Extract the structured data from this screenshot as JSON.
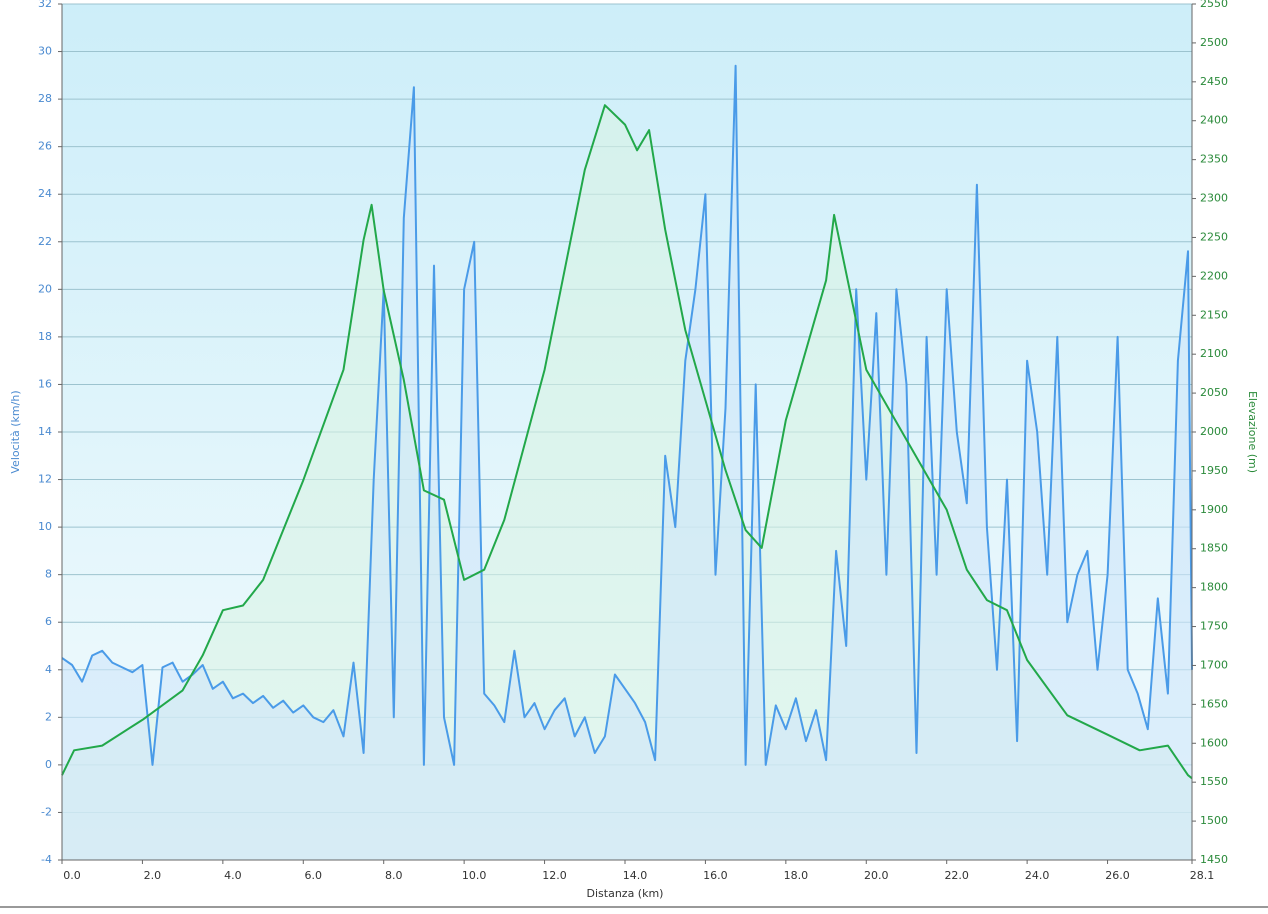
{
  "chart_data": {
    "type": "line",
    "x_label": "Distanza  (km)",
    "y_label": "Velocità (km/h)",
    "y2_label": "Elevazione (m)",
    "xlim": [
      0,
      28.1
    ],
    "ylim": [
      -4,
      32
    ],
    "y2lim": [
      1450,
      2550
    ],
    "xticks": [
      {
        "value": 0,
        "label": "0.0"
      },
      {
        "value": 2,
        "label": "2.0"
      },
      {
        "value": 4,
        "label": "4.0"
      },
      {
        "value": 6,
        "label": "6.0"
      },
      {
        "value": 8,
        "label": "8.0"
      },
      {
        "value": 10,
        "label": "10.0"
      },
      {
        "value": 12,
        "label": "12.0"
      },
      {
        "value": 14,
        "label": "14.0"
      },
      {
        "value": 16,
        "label": "16.0"
      },
      {
        "value": 18,
        "label": "18.0"
      },
      {
        "value": 20,
        "label": "20.0"
      },
      {
        "value": 22,
        "label": "22.0"
      },
      {
        "value": 24,
        "label": "24.0"
      },
      {
        "value": 26,
        "label": "26.0"
      },
      28.1
    ],
    "yticks": [
      -4,
      -2,
      0,
      2,
      4,
      6,
      8,
      10,
      12,
      14,
      16,
      18,
      20,
      22,
      24,
      26,
      28,
      30,
      32
    ],
    "y2ticks": [
      1450,
      1500,
      1550,
      1600,
      1650,
      1700,
      1750,
      1800,
      1850,
      1900,
      1950,
      2000,
      2050,
      2100,
      2150,
      2200,
      2250,
      2300,
      2350,
      2400,
      2450,
      2500,
      2550
    ],
    "grid": true,
    "series": [
      {
        "color": "#4a9be8",
        "fill": "#cfe6fa",
        "axis": "y",
        "x": [
          0,
          0.25,
          0.5,
          0.75,
          1,
          1.25,
          1.5,
          1.75,
          2,
          2.25,
          2.5,
          2.75,
          3,
          3.25,
          3.5,
          3.75,
          4,
          4.25,
          4.5,
          4.75,
          5,
          5.25,
          5.5,
          5.75,
          6,
          6.25,
          6.5,
          6.75,
          7,
          7.25,
          7.5,
          7.75,
          8,
          8.25,
          8.5,
          8.75,
          9,
          9.25,
          9.5,
          9.75,
          10,
          10.25,
          10.5,
          10.75,
          11,
          11.25,
          11.5,
          11.75,
          12,
          12.25,
          12.5,
          12.75,
          13,
          13.25,
          13.5,
          13.75,
          14,
          14.25,
          14.5,
          14.75,
          15,
          15.25,
          15.5,
          15.75,
          16,
          16.25,
          16.5,
          16.75,
          17,
          17.25,
          17.5,
          17.75,
          18,
          18.25,
          18.5,
          18.75,
          19,
          19.25,
          19.5,
          19.75,
          20,
          20.25,
          20.5,
          20.75,
          21,
          21.25,
          21.5,
          21.75,
          22,
          22.25,
          22.5,
          22.75,
          23,
          23.25,
          23.5,
          23.75,
          24,
          24.25,
          24.5,
          24.75,
          25,
          25.25,
          25.5,
          25.75,
          26,
          26.25,
          26.5,
          26.75,
          27,
          27.25,
          27.5,
          27.75,
          28,
          28.1
        ],
        "values": [
          4.5,
          4.2,
          3.5,
          4.6,
          4.8,
          4.3,
          4.1,
          3.9,
          4.2,
          0,
          4.1,
          4.3,
          3.5,
          3.8,
          4.2,
          3.2,
          3.5,
          2.8,
          3.0,
          2.6,
          2.9,
          2.4,
          2.7,
          2.2,
          2.5,
          2.0,
          1.8,
          2.3,
          1.2,
          4.3,
          0.5,
          12,
          20,
          2,
          23,
          28.5,
          0,
          21,
          2,
          0,
          20,
          22,
          3,
          2.5,
          1.8,
          4.8,
          2.0,
          2.6,
          1.5,
          2.3,
          2.8,
          1.2,
          2.0,
          0.5,
          1.2,
          3.8,
          3.2,
          2.6,
          1.8,
          0.2,
          13,
          10,
          17,
          20,
          24,
          8,
          15,
          29.4,
          0,
          16,
          0,
          2.5,
          1.5,
          2.8,
          1.0,
          2.3,
          0.2,
          9,
          5,
          20,
          12,
          19,
          8,
          20,
          16,
          0.5,
          18,
          8,
          20,
          14,
          11,
          24.4,
          10,
          4,
          12,
          1,
          17,
          14,
          8,
          18,
          6,
          8,
          9,
          4,
          8,
          18,
          4,
          3,
          1.5,
          7,
          3,
          17,
          21.6,
          4
        ]
      },
      {
        "color": "#22a84a",
        "fill": "#d8f4e4",
        "axis": "y2",
        "x": [
          0,
          0.3,
          1,
          2,
          3,
          3.5,
          4,
          4.5,
          5,
          6,
          7,
          7.5,
          7.7,
          8,
          8.5,
          9,
          9.5,
          10,
          10.5,
          11,
          12,
          13,
          13.5,
          14,
          14.3,
          14.6,
          15,
          15.5,
          16,
          16.5,
          17,
          17.4,
          18,
          19,
          19.2,
          20,
          21,
          22,
          22.5,
          23,
          23.5,
          24,
          25,
          26,
          26.8,
          27.5,
          28,
          28.1
        ],
        "values": [
          1559,
          1591,
          1597,
          1630,
          1668,
          1713,
          1771,
          1777,
          1810,
          1938,
          2080,
          2247,
          2292,
          2182,
          2067,
          1925,
          1913,
          1810,
          1823,
          1887,
          2080,
          2337,
          2420,
          2395,
          2362,
          2388,
          2260,
          2131,
          2041,
          1951,
          1874,
          1851,
          2015,
          2195,
          2279,
          2080,
          1990,
          1900,
          1823,
          1784,
          1771,
          1707,
          1636,
          1611,
          1591,
          1597,
          1559,
          1555
        ]
      }
    ]
  }
}
